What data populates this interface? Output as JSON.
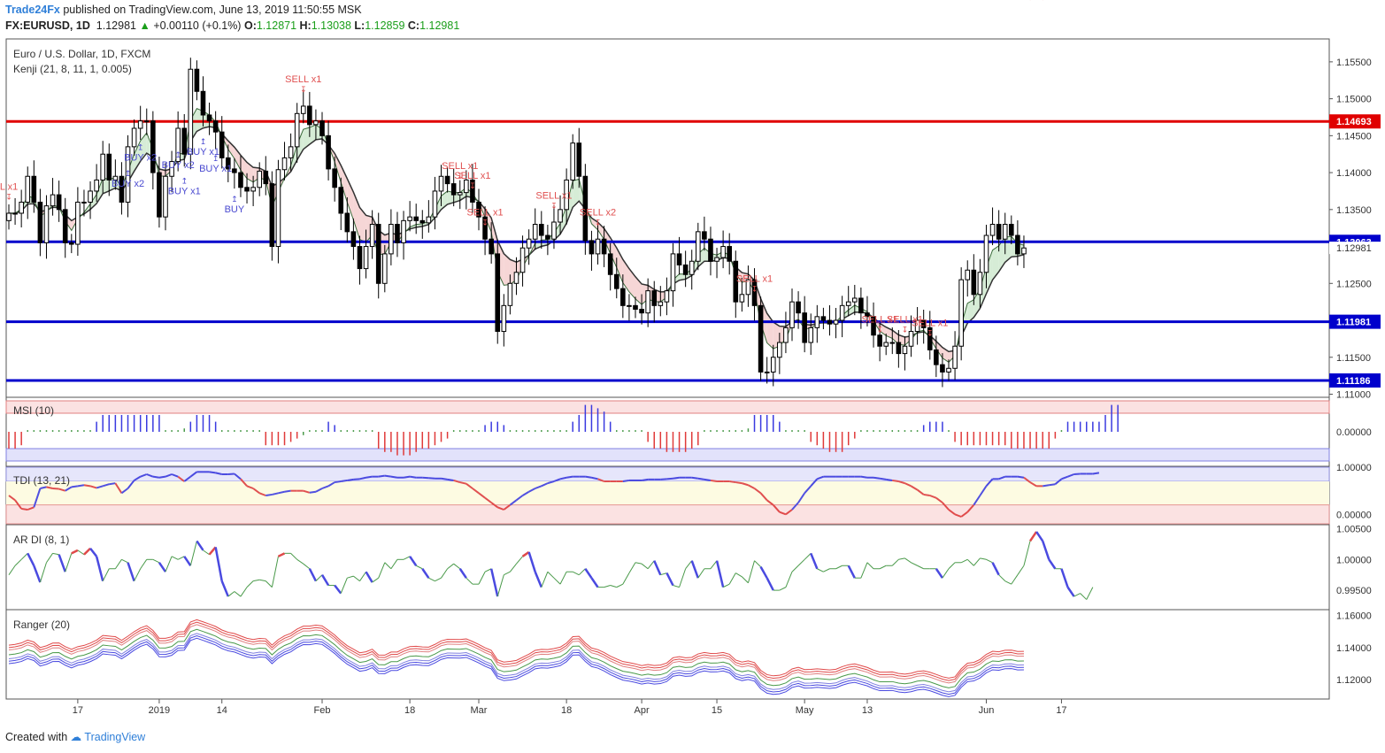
{
  "header": {
    "publisher": "Trade24Fx",
    "published_text": "published on TradingView.com, June 13, 2019 11:50:55 MSK",
    "symbol": "FX:EURUSD, 1D",
    "last": "1.12981",
    "change": "+0.00110 (+0.1%)",
    "o_label": "O:",
    "o": "1.12871",
    "h_label": "H:",
    "h": "1.13038",
    "l_label": "L:",
    "l": "1.12859",
    "c_label": "C:",
    "c": "1.12981"
  },
  "footer": {
    "created_with": "Created with",
    "brand": "TradingView"
  },
  "colors": {
    "up": "#ffffff",
    "down": "#000000",
    "red_line": "#e00000",
    "blue_line": "#0000cc",
    "sell": "#e05050",
    "buy": "#4a4ad0",
    "kenji_up_fill": "#d6ecd6",
    "kenji_dn_fill": "#f6d6d6"
  },
  "chart_data": [
    {
      "type": "candlestick",
      "title": "Euro / U.S. Dollar, 1D, FXCM",
      "indicator": "Kenji (21, 8, 11, 1, 0.005)",
      "ylim": [
        1.1097,
        1.1581
      ],
      "yticks": [
        "1.15500",
        "1.15000",
        "1.14500",
        "1.14000",
        "1.13500",
        "1.13000",
        "1.12500",
        "1.12000",
        "1.11500",
        "1.11000"
      ],
      "xticks": [
        {
          "label": "17",
          "i": 11
        },
        {
          "label": "2019",
          "i": 24
        },
        {
          "label": "14",
          "i": 34
        },
        {
          "label": "Feb",
          "i": 50
        },
        {
          "label": "18",
          "i": 64
        },
        {
          "label": "Mar",
          "i": 75
        },
        {
          "label": "18",
          "i": 89
        },
        {
          "label": "Apr",
          "i": 101
        },
        {
          "label": "15",
          "i": 113
        },
        {
          "label": "May",
          "i": 127
        },
        {
          "label": "13",
          "i": 137
        },
        {
          "label": "Jun",
          "i": 156
        },
        {
          "label": "17",
          "i": 168
        }
      ],
      "levels": [
        {
          "value": 1.14693,
          "label": "1.14693",
          "color": "#e00000"
        },
        {
          "value": 1.13063,
          "label": "1.13063",
          "color": "#0000cc"
        },
        {
          "value": 1.11981,
          "label": "1.11981",
          "color": "#0000cc"
        },
        {
          "value": 1.11186,
          "label": "1.11186",
          "color": "#0000cc"
        }
      ],
      "last_price_label": "1.12981",
      "last_price": 1.12981,
      "closes": [
        1.1345,
        1.1345,
        1.136,
        1.1395,
        1.136,
        1.1305,
        1.1355,
        1.137,
        1.135,
        1.1305,
        1.1303,
        1.136,
        1.136,
        1.1375,
        1.139,
        1.1425,
        1.139,
        1.1395,
        1.136,
        1.1435,
        1.146,
        1.147,
        1.147,
        1.14,
        1.134,
        1.1395,
        1.1415,
        1.146,
        1.1425,
        1.154,
        1.151,
        1.1478,
        1.147,
        1.1455,
        1.142,
        1.1405,
        1.14,
        1.138,
        1.1375,
        1.138,
        1.1402,
        1.1385,
        1.13,
        1.1404,
        1.142,
        1.1435,
        1.148,
        1.149,
        1.1465,
        1.147,
        1.145,
        1.1405,
        1.138,
        1.1345,
        1.132,
        1.13,
        1.127,
        1.13,
        1.133,
        1.125,
        1.129,
        1.133,
        1.1305,
        1.1335,
        1.134,
        1.1335,
        1.1332,
        1.134,
        1.1375,
        1.1395,
        1.1385,
        1.137,
        1.1373,
        1.139,
        1.136,
        1.134,
        1.131,
        1.129,
        1.1185,
        1.122,
        1.125,
        1.1265,
        1.1298,
        1.131,
        1.133,
        1.1315,
        1.131,
        1.1333,
        1.135,
        1.139,
        1.144,
        1.1395,
        1.1308,
        1.129,
        1.131,
        1.129,
        1.1262,
        1.1243,
        1.122,
        1.122,
        1.1215,
        1.121,
        1.124,
        1.122,
        1.1225,
        1.124,
        1.129,
        1.1275,
        1.1262,
        1.128,
        1.132,
        1.131,
        1.128,
        1.1285,
        1.13,
        1.128,
        1.1225,
        1.1235,
        1.1255,
        1.122,
        1.113,
        1.113,
        1.115,
        1.117,
        1.119,
        1.1225,
        1.121,
        1.117,
        1.119,
        1.1205,
        1.12,
        1.1195,
        1.12,
        1.122,
        1.1225,
        1.123,
        1.121,
        1.1205,
        1.118,
        1.1165,
        1.117,
        1.117,
        1.1155,
        1.1165,
        1.1185,
        1.12,
        1.119,
        1.116,
        1.114,
        1.113,
        1.1135,
        1.1165,
        1.1255,
        1.1268,
        1.1235,
        1.1265,
        1.1315,
        1.133,
        1.131,
        1.133,
        1.1315,
        1.129,
        1.1298
      ]
    },
    {
      "type": "bar",
      "title": "MSI (10)",
      "ylim": [
        -1,
        1
      ],
      "ytick_label": "0.00000",
      "values": [
        -0.5,
        -0.5,
        -0.4,
        0.05,
        0.05,
        0.05,
        0.05,
        0.05,
        0.05,
        0.05,
        0.05,
        0.05,
        0.05,
        0.05,
        0.3,
        0.5,
        0.5,
        0.5,
        0.5,
        0.5,
        0.5,
        0.5,
        0.5,
        0.5,
        0.5,
        0.05,
        0.05,
        0.05,
        0.1,
        0.3,
        0.5,
        0.5,
        0.5,
        0.3,
        0.05,
        0.05,
        0.05,
        0.05,
        0.05,
        0.05,
        0.05,
        -0.4,
        -0.4,
        -0.4,
        -0.4,
        -0.3,
        -0.2,
        -0.1,
        0.05,
        0.05,
        0.05,
        0.3,
        0.2,
        0.05,
        0.05,
        0.05,
        0.05,
        0.05,
        0.05,
        -0.5,
        -0.6,
        -0.6,
        -0.7,
        -0.7,
        -0.7,
        -0.6,
        -0.5,
        -0.5,
        -0.4,
        -0.3,
        -0.2,
        0.05,
        0.05,
        0.05,
        0.05,
        0.05,
        0.2,
        0.3,
        0.3,
        0.2,
        0.05,
        0.05,
        0.05,
        0.05,
        0.05,
        0.05,
        0.05,
        0.05,
        0.05,
        0.05,
        0.3,
        0.5,
        0.8,
        0.8,
        0.7,
        0.6,
        0.3,
        0.05,
        0.05,
        0.05,
        0.05,
        0.05,
        -0.3,
        -0.5,
        -0.5,
        -0.6,
        -0.6,
        -0.6,
        -0.6,
        -0.5,
        -0.4,
        0.05,
        0.05,
        0.05,
        0.05,
        0.05,
        0.05,
        0.05,
        0.1,
        0.5,
        0.5,
        0.5,
        0.5,
        0.3,
        0.05,
        0.05,
        0.05,
        0.05,
        -0.3,
        -0.4,
        -0.5,
        -0.6,
        -0.6,
        -0.6,
        -0.4,
        -0.2,
        0.05,
        0.05,
        0.05,
        0.05,
        0.05,
        0.05,
        0.05,
        0.05,
        0.05,
        0.05,
        0.2,
        0.3,
        0.3,
        0.3,
        0.05,
        -0.3,
        -0.4,
        -0.4,
        -0.4,
        -0.4,
        -0.4,
        -0.4,
        -0.4,
        -0.4,
        -0.5,
        -0.5,
        -0.5,
        -0.5,
        -0.5,
        -0.5,
        -0.5,
        -0.2,
        0.05,
        0.3,
        0.3,
        0.3,
        0.3,
        0.3,
        0.3,
        0.5,
        0.8,
        0.8
      ]
    },
    {
      "type": "line",
      "title": "TDI (13, 21)",
      "ylim": [
        -0.2,
        1.0
      ],
      "yticks": [
        "1.00000",
        "0.00000"
      ],
      "values": [
        0.4,
        0.3,
        0.12,
        0.1,
        0.15,
        0.55,
        0.58,
        0.55,
        0.54,
        0.5,
        0.58,
        0.6,
        0.62,
        0.6,
        0.56,
        0.6,
        0.64,
        0.66,
        0.45,
        0.55,
        0.72,
        0.8,
        0.85,
        0.8,
        0.78,
        0.8,
        0.85,
        0.8,
        0.7,
        0.8,
        0.9,
        0.9,
        0.9,
        0.88,
        0.85,
        0.85,
        0.86,
        0.75,
        0.6,
        0.55,
        0.45,
        0.4,
        0.42,
        0.45,
        0.48,
        0.5,
        0.5,
        0.5,
        0.46,
        0.48,
        0.55,
        0.6,
        0.68,
        0.7,
        0.72,
        0.74,
        0.75,
        0.78,
        0.8,
        0.8,
        0.82,
        0.8,
        0.78,
        0.78,
        0.8,
        0.78,
        0.78,
        0.77,
        0.76,
        0.76,
        0.74,
        0.72,
        0.68,
        0.65,
        0.55,
        0.45,
        0.35,
        0.25,
        0.15,
        0.1,
        0.2,
        0.3,
        0.4,
        0.48,
        0.55,
        0.6,
        0.66,
        0.7,
        0.75,
        0.78,
        0.8,
        0.8,
        0.8,
        0.78,
        0.75,
        0.7,
        0.7,
        0.7,
        0.7,
        0.72,
        0.72,
        0.72,
        0.74,
        0.74,
        0.74,
        0.75,
        0.76,
        0.78,
        0.78,
        0.78,
        0.76,
        0.74,
        0.72,
        0.7,
        0.7,
        0.7,
        0.68,
        0.66,
        0.62,
        0.55,
        0.45,
        0.3,
        0.2,
        0.05,
        0.0,
        0.1,
        0.25,
        0.45,
        0.6,
        0.75,
        0.8,
        0.8,
        0.8,
        0.8,
        0.8,
        0.8,
        0.8,
        0.78,
        0.78,
        0.76,
        0.74,
        0.72,
        0.7,
        0.66,
        0.6,
        0.52,
        0.42,
        0.4,
        0.35,
        0.25,
        0.1,
        0.0,
        -0.05,
        0.05,
        0.2,
        0.4,
        0.6,
        0.75,
        0.75,
        0.8,
        0.8,
        0.8,
        0.78,
        0.68,
        0.6,
        0.6,
        0.62,
        0.64,
        0.75,
        0.8,
        0.85,
        0.86,
        0.86,
        0.86,
        0.88
      ]
    },
    {
      "type": "line",
      "title": "AR DI (8, 1)",
      "ylim": [
        0.992,
        1.0055
      ],
      "yticks": [
        "1.00500",
        "1.00000",
        "0.99500"
      ],
      "values": [
        0.9975,
        0.999,
        1.0,
        1.001,
        0.999,
        0.9963,
        0.9995,
        1.001,
        1.0008,
        0.998,
        1.001,
        1.0015,
        1.0008,
        1.0018,
        1.0005,
        0.9965,
        0.9985,
        0.9985,
        1.0,
        0.9995,
        0.9965,
        0.9985,
        1.0,
        1.0,
        0.9995,
        0.998,
        1.0005,
        1.0,
        1.0005,
        0.999,
        1.003,
        1.0015,
        1.0008,
        1.002,
        0.9965,
        0.994,
        0.9948,
        0.994,
        0.9955,
        0.9965,
        0.9967,
        0.9965,
        0.9955,
        1.0005,
        1.001,
        1.001,
        1.0,
        0.9993,
        0.9985,
        0.9965,
        0.9975,
        0.9958,
        0.9958,
        0.9945,
        0.997,
        0.9973,
        0.9965,
        0.998,
        0.9963,
        0.997,
        0.9995,
        0.9985,
        1.0,
        1.0,
        1.0005,
        0.999,
        0.9985,
        0.997,
        0.9965,
        0.997,
        0.9985,
        0.9993,
        0.9985,
        0.997,
        0.996,
        0.996,
        0.998,
        0.9985,
        0.994,
        0.9975,
        0.998,
        0.9993,
        1.0005,
        1.0012,
        0.998,
        0.9955,
        0.998,
        0.997,
        0.996,
        0.998,
        0.998,
        0.9975,
        0.9985,
        0.997,
        0.9955,
        0.9955,
        0.9958,
        0.9955,
        0.996,
        0.9978,
        0.9995,
        0.9993,
        0.9985,
        0.9998,
        0.9975,
        0.9978,
        0.9958,
        0.9955,
        0.9985,
        0.9998,
        0.997,
        0.9985,
        0.9985,
        0.9998,
        0.9955,
        0.996,
        0.9978,
        0.9972,
        0.9962,
        0.9998,
        0.9988,
        0.997,
        0.995,
        0.995,
        0.9955,
        0.998,
        0.999,
        1.0,
        1.001,
        0.9985,
        0.998,
        0.9985,
        0.9985,
        0.999,
        0.999,
        0.997,
        0.997,
        0.9995,
        0.9985,
        0.9985,
        0.999,
        0.999,
        1.0,
        1.0002,
        0.9995,
        0.999,
        0.9985,
        0.9985,
        0.9985,
        0.997,
        0.9985,
        0.9995,
        0.9995,
        1.0,
        0.999,
        1.0002,
        1.0,
        0.9995,
        0.9975,
        0.9965,
        0.996,
        0.9975,
        0.999,
        1.003,
        1.0045,
        1.003,
        1.0,
        0.9985,
        0.9985,
        0.9955,
        0.994,
        0.9945,
        0.9935,
        0.9955
      ]
    },
    {
      "type": "line",
      "title": "Ranger (20)",
      "ylim": [
        1.108,
        1.163
      ],
      "yticks": [
        "1.16000",
        "1.14000",
        "1.12000"
      ],
      "closes_ref": "Ranger bands follow the price series"
    }
  ],
  "signals": [
    {
      "label": "L x1",
      "i": 0,
      "kind": "sell"
    },
    {
      "label": "BUY x2",
      "i": 19,
      "kind": "buy"
    },
    {
      "label": "BUY x2",
      "i": 21,
      "kind": "buy"
    },
    {
      "label": "BUY x2",
      "i": 27,
      "kind": "buy"
    },
    {
      "label": "BUY x1",
      "i": 28,
      "kind": "buy"
    },
    {
      "label": "BUY x1",
      "i": 31,
      "kind": "buy"
    },
    {
      "label": "BUY x1",
      "i": 33,
      "kind": "buy"
    },
    {
      "label": "BUY",
      "i": 36,
      "kind": "buy"
    },
    {
      "label": "SELL x1",
      "i": 47,
      "kind": "sell"
    },
    {
      "label": "SELL x1",
      "i": 72,
      "kind": "sell"
    },
    {
      "label": "SELL x1",
      "i": 74,
      "kind": "sell"
    },
    {
      "label": "SELL x1",
      "i": 76,
      "kind": "sell"
    },
    {
      "label": "SELL x1",
      "i": 87,
      "kind": "sell"
    },
    {
      "label": "SELL x2",
      "i": 94,
      "kind": "sell"
    },
    {
      "label": "SELL x1",
      "i": 119,
      "kind": "sell"
    },
    {
      "label": "SELL x1",
      "i": 139,
      "kind": "sell"
    },
    {
      "label": "SELL x1",
      "i": 143,
      "kind": "sell"
    },
    {
      "label": "SELL x1",
      "i": 147,
      "kind": "sell"
    },
    {
      "label": "SELL x2",
      "i": 163,
      "kind": "sell"
    },
    {
      "label": "SELL x2",
      "i": 165,
      "kind": "sell"
    }
  ]
}
